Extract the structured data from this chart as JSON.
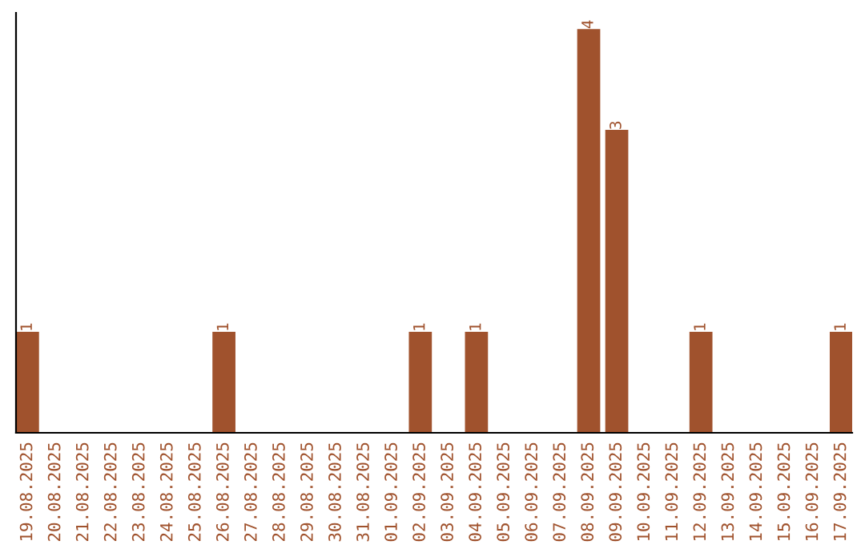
{
  "chart_data": {
    "type": "bar",
    "categories": [
      "19.08.2025",
      "20.08.2025",
      "21.08.2025",
      "22.08.2025",
      "23.08.2025",
      "24.08.2025",
      "25.08.2025",
      "26.08.2025",
      "27.08.2025",
      "28.08.2025",
      "29.08.2025",
      "30.08.2025",
      "31.08.2025",
      "01.09.2025",
      "02.09.2025",
      "03.09.2025",
      "04.09.2025",
      "05.09.2025",
      "06.09.2025",
      "07.09.2025",
      "08.09.2025",
      "09.09.2025",
      "10.09.2025",
      "11.09.2025",
      "12.09.2025",
      "13.09.2025",
      "14.09.2025",
      "15.09.2025",
      "16.09.2025",
      "17.09.2025"
    ],
    "values": [
      1,
      0,
      0,
      0,
      0,
      0,
      0,
      1,
      0,
      0,
      0,
      0,
      0,
      0,
      1,
      0,
      1,
      0,
      0,
      0,
      4,
      3,
      0,
      0,
      1,
      0,
      0,
      0,
      0,
      1
    ],
    "value_labels": [
      "1",
      null,
      null,
      null,
      null,
      null,
      null,
      "1",
      null,
      null,
      null,
      null,
      null,
      null,
      "1",
      null,
      "1",
      null,
      null,
      null,
      "4",
      "3",
      null,
      null,
      "1",
      null,
      null,
      null,
      null,
      "1"
    ],
    "color": "#a0522d",
    "tick_labels": "x",
    "grid": false,
    "legend": false
  }
}
